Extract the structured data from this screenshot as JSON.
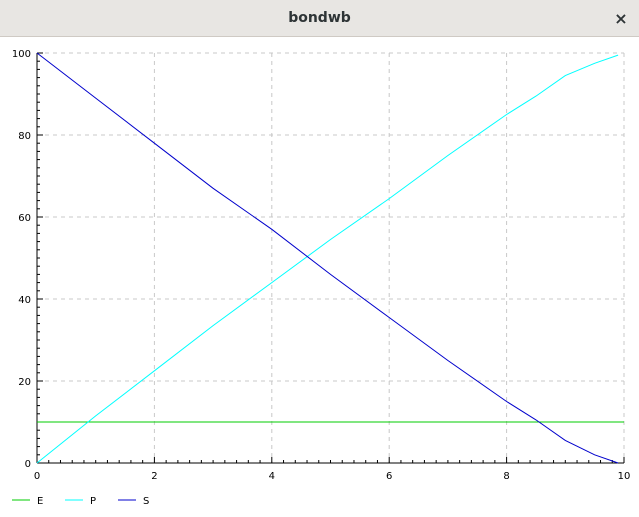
{
  "window": {
    "title": "bondwb",
    "close_glyph": "×"
  },
  "colors": {
    "E": "#00cc00",
    "P": "#00ffff",
    "S": "#0000cc"
  },
  "chart_data": {
    "type": "line",
    "title": "",
    "xlabel": "",
    "ylabel": "",
    "xlim": [
      0,
      10
    ],
    "ylim": [
      0,
      100
    ],
    "grid": true,
    "legend_placement": "bottom",
    "x_ticks": [
      0,
      2,
      4,
      6,
      8,
      10
    ],
    "y_ticks": [
      0,
      20,
      40,
      60,
      80,
      100
    ],
    "series": [
      {
        "name": "E",
        "color": "#00cc00",
        "x": [
          0,
          10
        ],
        "y": [
          10,
          10
        ]
      },
      {
        "name": "P",
        "color": "#00ffff",
        "x": [
          0,
          1,
          2,
          3,
          4,
          5,
          6,
          7,
          8,
          8.5,
          9,
          9.5,
          9.9
        ],
        "y": [
          0,
          11.5,
          22.5,
          33.5,
          44,
          54.5,
          64.5,
          75,
          85,
          89.5,
          94.5,
          97.5,
          99.5
        ]
      },
      {
        "name": "S",
        "color": "#0000cc",
        "x": [
          0,
          1,
          2,
          3,
          4,
          5,
          6,
          7,
          8,
          8.5,
          9,
          9.5,
          9.9
        ],
        "y": [
          100,
          89,
          78,
          67,
          57,
          46,
          35.5,
          25,
          15,
          10.5,
          5.5,
          2,
          0
        ]
      }
    ]
  }
}
